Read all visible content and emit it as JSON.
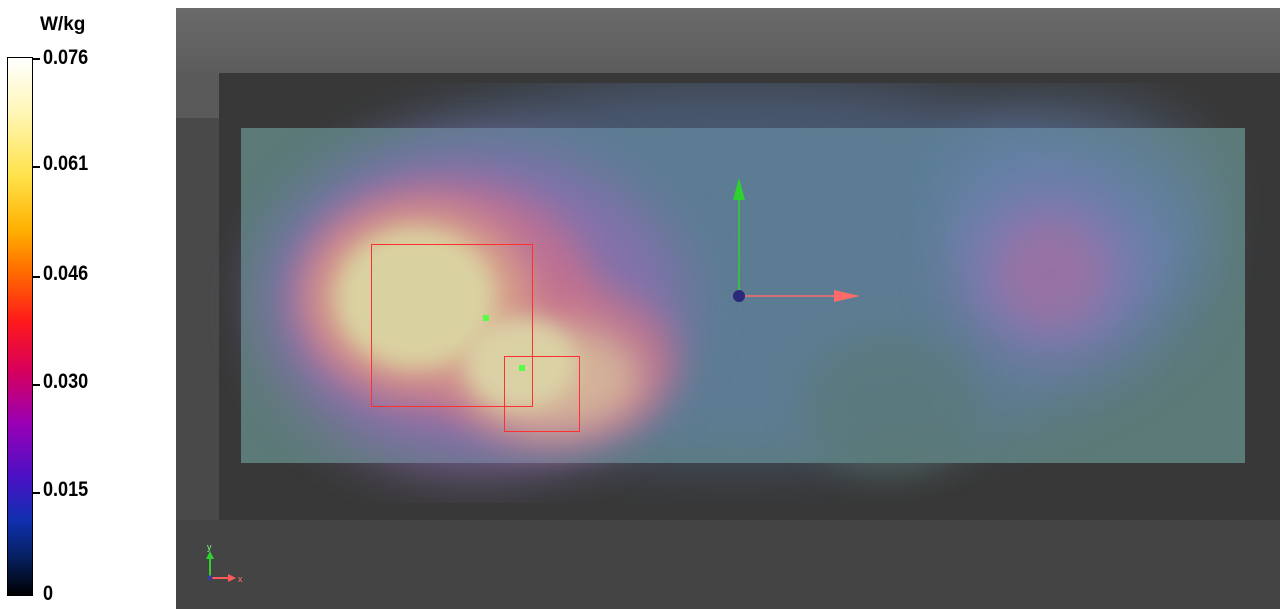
{
  "legend": {
    "unit": "W/kg",
    "ticks": [
      "0.076",
      "0.061",
      "0.046",
      "0.030",
      "0.015",
      "0"
    ],
    "colormap": [
      "#ffffff",
      "#fff7b8",
      "#ffe24a",
      "#ffb000",
      "#ff6a00",
      "#ff1a1a",
      "#d8005a",
      "#9a00b5",
      "#4a10c4",
      "#1030b0",
      "#062060",
      "#000000"
    ]
  },
  "viewport": {
    "background": "#494949",
    "plate_color": "#5c7a78",
    "roi_color": "#ff3030",
    "peak_marker_color": "#55ff44",
    "axes": {
      "large": {
        "x_color": "#ff6b6b",
        "y_color": "#2ed12e",
        "origin_color": "#2a2a7a"
      },
      "mini": {
        "x_label": "x",
        "y_label": "y"
      }
    }
  }
}
